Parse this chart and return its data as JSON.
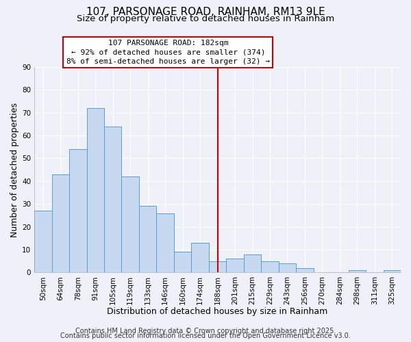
{
  "title": "107, PARSONAGE ROAD, RAINHAM, RM13 9LE",
  "subtitle": "Size of property relative to detached houses in Rainham",
  "xlabel": "Distribution of detached houses by size in Rainham",
  "ylabel": "Number of detached properties",
  "bar_labels": [
    "50sqm",
    "64sqm",
    "78sqm",
    "91sqm",
    "105sqm",
    "119sqm",
    "133sqm",
    "146sqm",
    "160sqm",
    "174sqm",
    "188sqm",
    "201sqm",
    "215sqm",
    "229sqm",
    "243sqm",
    "256sqm",
    "270sqm",
    "284sqm",
    "298sqm",
    "311sqm",
    "325sqm"
  ],
  "bar_values": [
    27,
    43,
    54,
    72,
    64,
    42,
    29,
    26,
    9,
    13,
    5,
    6,
    8,
    5,
    4,
    2,
    0,
    0,
    1,
    0,
    1
  ],
  "bar_color": "#c6d9f0",
  "bar_edge_color": "#5b9bd5",
  "vline_x": 10.0,
  "vline_color": "#cc0000",
  "ylim": [
    0,
    90
  ],
  "yticks": [
    0,
    10,
    20,
    30,
    40,
    50,
    60,
    70,
    80,
    90
  ],
  "annotation_title": "107 PARSONAGE ROAD: 182sqm",
  "annotation_line1": "← 92% of detached houses are smaller (374)",
  "annotation_line2": "8% of semi-detached houses are larger (32) →",
  "footer1": "Contains HM Land Registry data © Crown copyright and database right 2025.",
  "footer2": "Contains public sector information licensed under the Open Government Licence v3.0.",
  "bg_color": "#eef2f8",
  "grid_color": "#ffffff",
  "title_fontsize": 11,
  "subtitle_fontsize": 9.5,
  "axis_label_fontsize": 9,
  "tick_fontsize": 7.5,
  "annotation_fontsize": 8,
  "footer_fontsize": 7
}
